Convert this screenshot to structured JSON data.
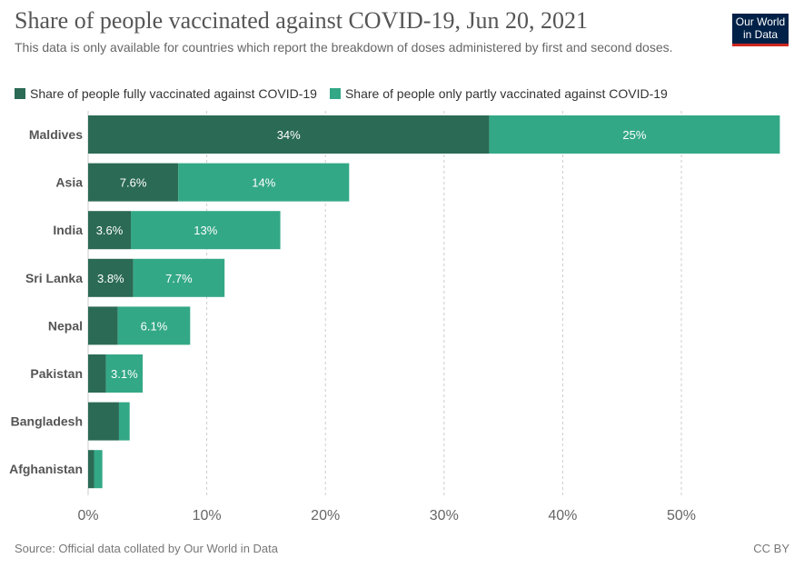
{
  "title": "Share of people vaccinated against COVID-19, Jun 20, 2021",
  "subtitle": "This data is only available for countries which report the breakdown of doses administered by first and second doses.",
  "logo": "Our World in Data",
  "source": "Source: Official data collated by Our World in Data",
  "license": "CC BY",
  "colors": {
    "fully": "#2b6a55",
    "partly": "#33a886"
  },
  "chart_data": {
    "type": "bar",
    "orientation": "horizontal",
    "stacked": true,
    "title": "Share of people vaccinated against COVID-19, Jun 20, 2021",
    "categories": [
      "Maldives",
      "Asia",
      "India",
      "Sri Lanka",
      "Nepal",
      "Pakistan",
      "Bangladesh",
      "Afghanistan"
    ],
    "series": [
      {
        "name": "Share of people fully vaccinated against COVID-19",
        "values": [
          33.8,
          7.6,
          3.6,
          3.8,
          2.5,
          1.5,
          2.6,
          0.5
        ],
        "labels": [
          "34%",
          "7.6%",
          "3.6%",
          "3.8%",
          "",
          "",
          "",
          ""
        ]
      },
      {
        "name": "Share of people only partly vaccinated against COVID-19",
        "values": [
          24.5,
          14.4,
          12.6,
          7.7,
          6.1,
          3.1,
          0.9,
          0.7
        ],
        "labels": [
          "25%",
          "14%",
          "13%",
          "7.7%",
          "6.1%",
          "3.1%",
          "",
          ""
        ]
      }
    ],
    "xlim": [
      0,
      58.3
    ],
    "xticks": [
      "0%",
      "10%",
      "20%",
      "30%",
      "40%",
      "50%"
    ],
    "xtick_values": [
      0,
      10,
      20,
      30,
      40,
      50
    ],
    "grid": true,
    "legend_placement": "top-left"
  }
}
